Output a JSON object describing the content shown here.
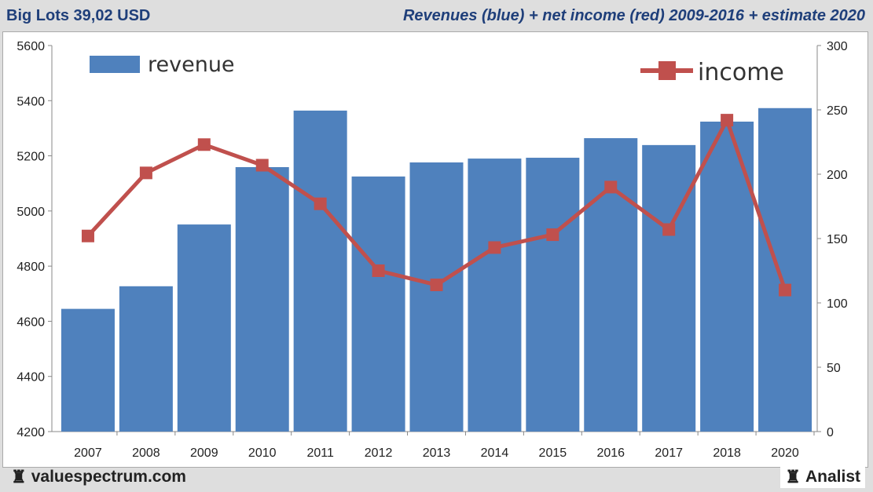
{
  "header": {
    "title": "Big Lots 39,02 USD",
    "subtitle": "Revenues (blue) + net income (red) 2009-2016 + estimate 2020"
  },
  "footer": {
    "brand_left": "valuespectrum.com",
    "brand_right": "Analist",
    "logo_icon": "rook-icon"
  },
  "chart_data": {
    "type": "bar",
    "categories": [
      "2007",
      "2008",
      "2009",
      "2010",
      "2011",
      "2012",
      "2013",
      "2014",
      "2015",
      "2016",
      "2017",
      "2018",
      "2020"
    ],
    "series": [
      {
        "name": "revenue",
        "type": "bar",
        "axis": "left",
        "color": "#4f81bd",
        "values": [
          4645,
          4727,
          4951,
          5159,
          5364,
          5125,
          5176,
          5190,
          5193,
          5264,
          5239,
          5324,
          5373
        ]
      },
      {
        "name": "income",
        "type": "line",
        "axis": "right",
        "color": "#c0504d",
        "values": [
          152,
          201,
          223,
          207,
          177,
          125,
          114,
          143,
          153,
          190,
          157,
          242,
          110
        ]
      }
    ],
    "y_left": {
      "min": 4200,
      "max": 5600,
      "ticks": [
        "4200",
        "4400",
        "4600",
        "4800",
        "5000",
        "5200",
        "5400",
        "5600"
      ]
    },
    "y_right": {
      "min": 0,
      "max": 300,
      "ticks": [
        "0",
        "50",
        "100",
        "150",
        "200",
        "250",
        "300"
      ]
    },
    "grid": false,
    "legend": [
      {
        "label": "revenue",
        "placement": "top-left"
      },
      {
        "label": "income",
        "placement": "top-right"
      }
    ]
  }
}
